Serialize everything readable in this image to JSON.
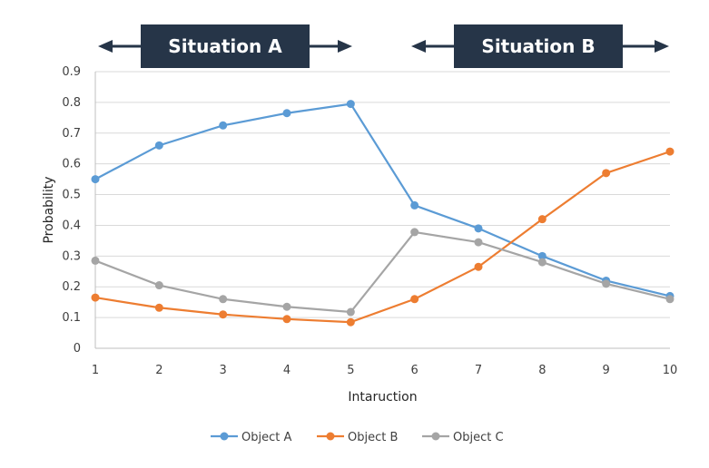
{
  "chart_data": {
    "type": "line",
    "title": "",
    "xlabel": "Intaruction",
    "ylabel": "Probability",
    "x": [
      1,
      2,
      3,
      4,
      5,
      6,
      7,
      8,
      9,
      10
    ],
    "ylim": [
      0,
      0.9
    ],
    "yticks": [
      "0",
      "0.1",
      "0.2",
      "0.3",
      "0.4",
      "0.5",
      "0.6",
      "0.7",
      "0.8",
      "0.9"
    ],
    "grid": true,
    "legend_position": "bottom",
    "series": [
      {
        "name": "Object A",
        "color": "#5b9bd5",
        "values": [
          0.55,
          0.66,
          0.725,
          0.765,
          0.795,
          0.465,
          0.39,
          0.3,
          0.22,
          0.17
        ]
      },
      {
        "name": "Object B",
        "color": "#ed7d31",
        "values": [
          0.165,
          0.132,
          0.11,
          0.095,
          0.085,
          0.16,
          0.265,
          0.42,
          0.57,
          0.64
        ]
      },
      {
        "name": "Object C",
        "color": "#a5a5a5",
        "values": [
          0.285,
          0.205,
          0.16,
          0.135,
          0.118,
          0.378,
          0.345,
          0.28,
          0.21,
          0.16
        ]
      }
    ],
    "annotations": [
      {
        "label": "Situation A",
        "color": "#263548"
      },
      {
        "label": "Situation B",
        "color": "#263548"
      }
    ]
  }
}
